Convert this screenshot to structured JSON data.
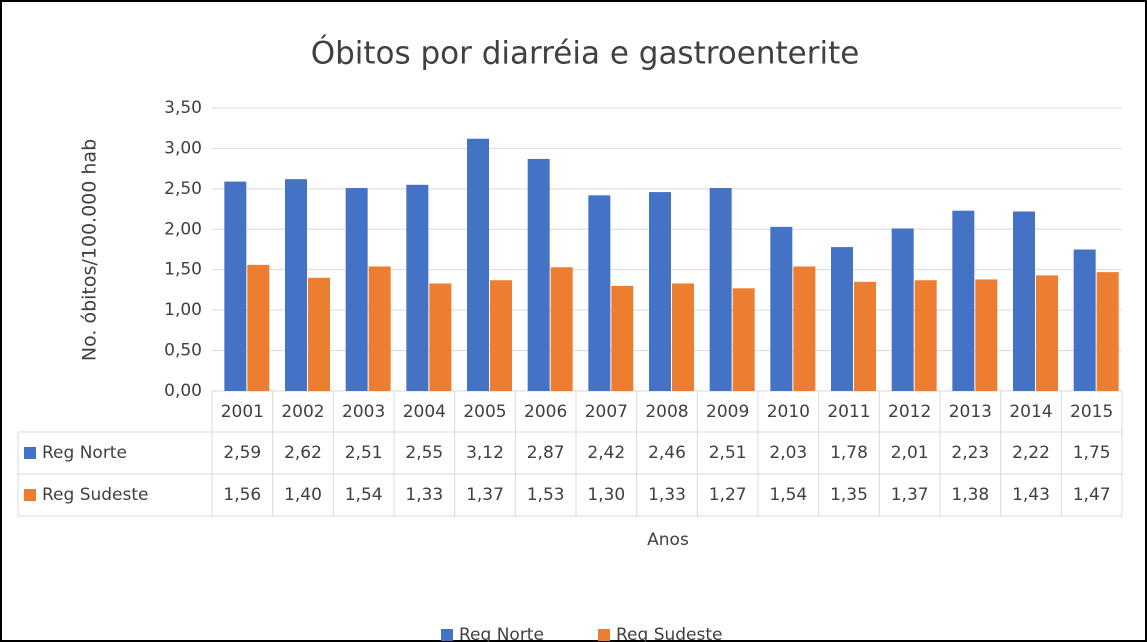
{
  "chart_data": {
    "type": "bar",
    "title": "Óbitos por diarréia e gastroenterite",
    "y_label": "No. óbitos/100.000 hab",
    "x_label": "Anos",
    "categories": [
      "2001",
      "2002",
      "2003",
      "2004",
      "2005",
      "2006",
      "2007",
      "2008",
      "2009",
      "2010",
      "2011",
      "2012",
      "2013",
      "2014",
      "2015"
    ],
    "series": [
      {
        "name": "Reg Norte",
        "color": "#4472c4",
        "values": [
          2.59,
          2.62,
          2.51,
          2.55,
          3.12,
          2.87,
          2.42,
          2.46,
          2.51,
          2.03,
          1.78,
          2.01,
          2.23,
          2.22,
          1.75
        ],
        "value_labels": [
          "2,59",
          "2,62",
          "2,51",
          "2,55",
          "3,12",
          "2,87",
          "2,42",
          "2,46",
          "2,51",
          "2,03",
          "1,78",
          "2,01",
          "2,23",
          "2,22",
          "1,75"
        ]
      },
      {
        "name": "Reg Sudeste",
        "color": "#ed7d31",
        "values": [
          1.56,
          1.4,
          1.54,
          1.33,
          1.37,
          1.53,
          1.3,
          1.33,
          1.27,
          1.54,
          1.35,
          1.37,
          1.38,
          1.43,
          1.47
        ],
        "value_labels": [
          "1,56",
          "1,40",
          "1,54",
          "1,33",
          "1,37",
          "1,53",
          "1,30",
          "1,33",
          "1,27",
          "1,54",
          "1,35",
          "1,37",
          "1,38",
          "1,43",
          "1,47"
        ]
      }
    ],
    "ylim": [
      0,
      3.5
    ],
    "yticks": [
      {
        "value": 0,
        "label": "0,00"
      },
      {
        "value": 0.5,
        "label": "0,50"
      },
      {
        "value": 1,
        "label": "1,00"
      },
      {
        "value": 1.5,
        "label": "1,50"
      },
      {
        "value": 2,
        "label": "2,00"
      },
      {
        "value": 2.5,
        "label": "2,50"
      },
      {
        "value": 3,
        "label": "3,00"
      },
      {
        "value": 3.5,
        "label": "3,50"
      }
    ],
    "grid": true,
    "legend": "bottom"
  }
}
